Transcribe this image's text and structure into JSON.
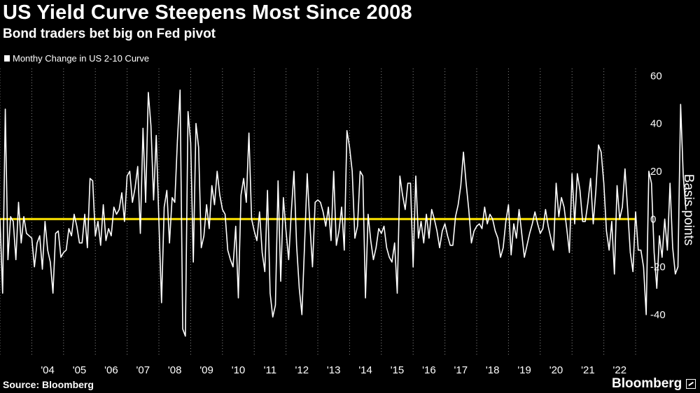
{
  "title": "US Yield Curve Steepens Most Since 2008",
  "subtitle": "Bond traders bet big on Fed pivot",
  "source": "Source: Bloomberg",
  "brand": "Bloomberg",
  "colors": {
    "background": "#000000",
    "series": "#ffffff",
    "zero_line": "#ffe500",
    "grid": "#888888"
  },
  "chart_data": {
    "type": "line",
    "title": "US Yield Curve Steepens Most Since 2008",
    "subtitle": "Bond traders bet big on Fed pivot",
    "xlabel": "",
    "ylabel": "Basis points",
    "ylim": [
      -57,
      63
    ],
    "yticks": [
      -40,
      -20,
      0,
      20,
      40,
      60
    ],
    "ytick_labels": [
      "-40",
      "-20",
      "0",
      "20",
      "40",
      "60"
    ],
    "x_start": 2003.0,
    "x_end": 2023.0,
    "xticks": [
      {
        "label": "'04",
        "x": 2004.0
      },
      {
        "label": "'05",
        "x": 2005.0
      },
      {
        "label": "'06",
        "x": 2006.0
      },
      {
        "label": "'07",
        "x": 2007.0
      },
      {
        "label": "'08",
        "x": 2008.0
      },
      {
        "label": "'09",
        "x": 2009.0
      },
      {
        "label": "'10",
        "x": 2010.0
      },
      {
        "label": "'11",
        "x": 2011.0
      },
      {
        "label": "'12",
        "x": 2012.0
      },
      {
        "label": "'13",
        "x": 2013.0
      },
      {
        "label": "'14",
        "x": 2014.0
      },
      {
        "label": "'15",
        "x": 2015.0
      },
      {
        "label": "'16",
        "x": 2016.0
      },
      {
        "label": "'17",
        "x": 2017.0
      },
      {
        "label": "'18",
        "x": 2018.0
      },
      {
        "label": "'19",
        "x": 2019.0
      },
      {
        "label": "'20",
        "x": 2020.0
      },
      {
        "label": "'21",
        "x": 2021.0
      },
      {
        "label": "'22",
        "x": 2022.0
      }
    ],
    "grid": "vertical dotted at year boundaries",
    "zero_line": {
      "y": 0,
      "color": "#ffe500"
    },
    "legend": {
      "position": "top-left",
      "entries": [
        "Monthy Change in US 2-10 Curve"
      ]
    },
    "series": [
      {
        "name": "Monthy Change in US 2-10 Curve",
        "x_start": 2003.0,
        "step_months": 1,
        "values": [
          0,
          -31,
          46,
          -17,
          1,
          -1,
          -17,
          7,
          -10,
          1,
          -6,
          -7,
          -8,
          -20,
          -10,
          -7,
          -21,
          -1,
          -13,
          -18,
          -31,
          -6,
          -5,
          -16,
          -14,
          -13,
          -4,
          -7,
          2,
          -3,
          -10,
          -10,
          2,
          -12,
          17,
          16,
          -7,
          -1,
          -11,
          6,
          -9,
          -4,
          -7,
          5,
          2,
          4,
          11,
          -1,
          18,
          20,
          7,
          13,
          22,
          -6,
          38,
          7,
          53,
          39,
          8,
          35,
          -1,
          -35,
          5,
          12,
          -10,
          9,
          7,
          33,
          54,
          -46,
          -49,
          45,
          32,
          -18,
          40,
          30,
          -12,
          -7,
          6,
          -4,
          14,
          6,
          20,
          10,
          4,
          2,
          -13,
          -17,
          -20,
          -3,
          -33,
          10,
          17,
          7,
          36,
          0,
          -5,
          -9,
          3,
          -14,
          -22,
          12,
          -31,
          -41,
          -36,
          16,
          -26,
          9,
          -5,
          -17,
          3,
          20,
          -11,
          -29,
          -40,
          -11,
          19,
          -2,
          -20,
          7,
          8,
          7,
          3,
          -3,
          5,
          -9,
          20,
          -11,
          -5,
          5,
          -13,
          37,
          30,
          20,
          -8,
          -3,
          20,
          18,
          -33,
          2,
          -9,
          -17,
          -12,
          -4,
          -6,
          -3,
          -12,
          -16,
          -18,
          -10,
          -31,
          18,
          10,
          4,
          15,
          15,
          -20,
          18,
          -8,
          -1,
          -10,
          2,
          -8,
          4,
          0,
          -5,
          -12,
          -5,
          -2,
          -7,
          -11,
          -11,
          1,
          6,
          14,
          28,
          15,
          4,
          -10,
          -5,
          -3,
          -2,
          -4,
          5,
          -2,
          2,
          0,
          -5,
          -8,
          -16,
          -12,
          -1,
          6,
          -15,
          -2,
          -8,
          4,
          -6,
          -16,
          -11,
          -6,
          -2,
          3,
          -2,
          -6,
          -4,
          4,
          -3,
          -8,
          -13,
          15,
          1,
          9,
          5,
          -4,
          -14,
          19,
          -2,
          19,
          12,
          -1,
          -1,
          7,
          17,
          -2,
          12,
          31,
          28,
          15,
          -5,
          -13,
          -1,
          -23,
          14,
          0,
          5,
          21,
          4,
          -14,
          -22,
          3,
          -13,
          -13,
          -20,
          -40,
          20,
          15,
          -14,
          -29,
          -7,
          -16,
          0,
          -13,
          15,
          -12,
          -23,
          -20,
          48,
          18,
          4
        ]
      }
    ]
  }
}
